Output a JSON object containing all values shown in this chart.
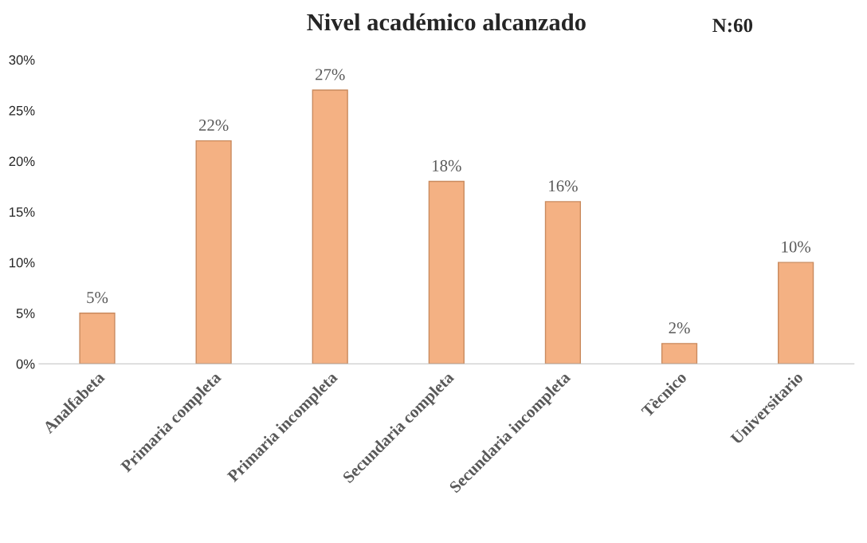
{
  "chart_data": {
    "type": "bar",
    "title": "Nivel académico alcanzado",
    "annotations": [
      "N:60"
    ],
    "categories": [
      "Analfabeta",
      "Primaria completa",
      "Primaria incompleta",
      "Secundaria completa",
      "Secundaria incompleta",
      "Tècnico",
      "Universitario"
    ],
    "values": [
      5,
      22,
      27,
      18,
      16,
      2,
      10
    ],
    "value_labels": [
      "5%",
      "22%",
      "27%",
      "18%",
      "16%",
      "2%",
      "10%"
    ],
    "color": "#f4b183",
    "ylim": [
      0,
      30
    ],
    "yticks": [
      {
        "value": 0,
        "label": "0%"
      },
      {
        "value": 5,
        "label": "5%"
      },
      {
        "value": 10,
        "label": "10%"
      },
      {
        "value": 15,
        "label": "15%"
      },
      {
        "value": 20,
        "label": "20%"
      },
      {
        "value": 25,
        "label": "25%"
      },
      {
        "value": 30,
        "label": "30%"
      }
    ],
    "grid": false
  }
}
